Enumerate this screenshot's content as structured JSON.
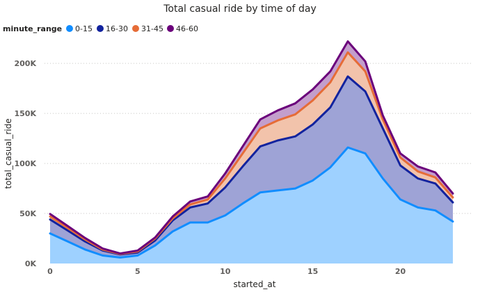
{
  "chart_data": {
    "type": "area",
    "stacked": true,
    "title": "Total casual ride by time of day",
    "xlabel": "started_at",
    "ylabel": "total_casual_ride",
    "xlim": [
      0,
      23
    ],
    "ylim": [
      0,
      230000
    ],
    "x_ticks": [
      0,
      5,
      10,
      15,
      20
    ],
    "x_tick_labels": [
      "0",
      "5",
      "10",
      "15",
      "20"
    ],
    "y_ticks": [
      0,
      50000,
      100000,
      150000,
      200000
    ],
    "y_tick_labels": [
      "0K",
      "50K",
      "100K",
      "150K",
      "200K"
    ],
    "grid": "horizontal dotted",
    "legend": {
      "title": "minute_range",
      "position": "top-left"
    },
    "x": [
      0,
      1,
      2,
      3,
      4,
      5,
      6,
      7,
      8,
      9,
      10,
      11,
      12,
      13,
      14,
      15,
      16,
      17,
      18,
      19,
      20,
      21,
      22,
      23
    ],
    "series": [
      {
        "name": "0-15",
        "color": "#118DFF",
        "fill": "#9ED1FF",
        "values": [
          30000,
          22000,
          14000,
          8000,
          6000,
          8000,
          18000,
          32000,
          41000,
          41000,
          48000,
          60000,
          71000,
          73000,
          75000,
          83000,
          96000,
          116000,
          110000,
          85000,
          64000,
          56000,
          53000,
          42000
        ]
      },
      {
        "name": "16-30",
        "color": "#12239E",
        "fill": "#9EA3D6",
        "values": [
          14000,
          11000,
          8000,
          5000,
          3000,
          3000,
          5000,
          11000,
          15000,
          19000,
          28000,
          37000,
          46000,
          50000,
          52000,
          56000,
          60000,
          71000,
          62000,
          50000,
          34000,
          29000,
          27000,
          19000
        ]
      },
      {
        "name": "31-45",
        "color": "#E66C37",
        "fill": "#F2C3AB",
        "values": [
          3000,
          2500,
          2000,
          1000,
          500,
          1000,
          2000,
          2000,
          3000,
          4000,
          9000,
          13000,
          18000,
          20000,
          22000,
          24000,
          25000,
          24000,
          20000,
          9000,
          8000,
          7000,
          6000,
          5000
        ]
      },
      {
        "name": "46-60",
        "color": "#6B007B",
        "fill": "#C39ECC",
        "values": [
          2500,
          2000,
          1500,
          1000,
          500,
          1000,
          1000,
          2000,
          3000,
          3000,
          5000,
          7000,
          9000,
          10000,
          11000,
          11000,
          11000,
          11000,
          10000,
          4000,
          4000,
          5000,
          5000,
          4000
        ]
      }
    ]
  }
}
